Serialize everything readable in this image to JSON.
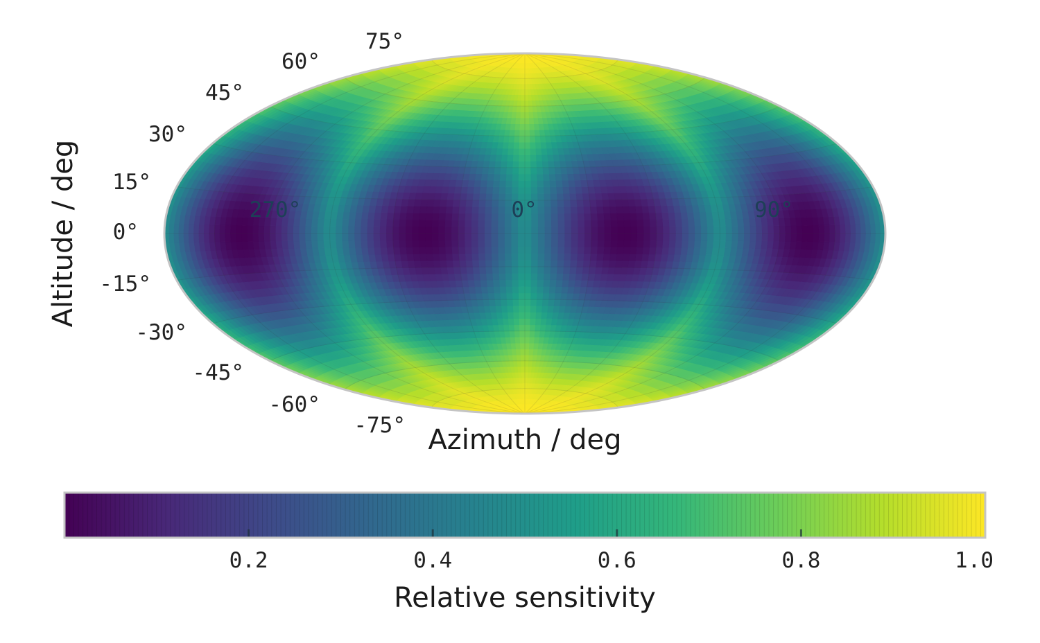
{
  "chart_data": {
    "type": "heatmap",
    "projection": "hammer",
    "title": "",
    "xlabel": "Azimuth / deg",
    "ylabel": "Altitude / deg",
    "x_tick_labels": [
      {
        "value": 270,
        "label": "270°"
      },
      {
        "value": 0,
        "label": "0°"
      },
      {
        "value": 90,
        "label": "90°"
      }
    ],
    "y_tick_labels": [
      {
        "value": 75,
        "label": "75°"
      },
      {
        "value": 60,
        "label": "60°"
      },
      {
        "value": 45,
        "label": "45°"
      },
      {
        "value": 30,
        "label": "30°"
      },
      {
        "value": 15,
        "label": "15°"
      },
      {
        "value": 0,
        "label": "0°"
      },
      {
        "value": -15,
        "label": "-15°"
      },
      {
        "value": -30,
        "label": "-30°"
      },
      {
        "value": -45,
        "label": "-45°"
      },
      {
        "value": -60,
        "label": "-60°"
      },
      {
        "value": -75,
        "label": "-75°"
      }
    ],
    "xlim_deg": [
      -180,
      180
    ],
    "ylim_deg": [
      -90,
      90
    ],
    "grid": true,
    "colormap": "viridis",
    "field": {
      "description_of_pattern": "sensitivity minima at altitude 0",
      "minima": [
        {
          "azimuth": -135,
          "altitude": 0,
          "value": 0.0
        },
        {
          "azimuth": -45,
          "altitude": 0,
          "value": 0.0
        },
        {
          "azimuth": 45,
          "altitude": 0,
          "value": 0.0
        },
        {
          "azimuth": 135,
          "altitude": 0,
          "value": 0.0
        }
      ],
      "pole_value": 1.0,
      "value_range": [
        0.0,
        1.0
      ]
    },
    "colorbar": {
      "label": "Relative sensitivity",
      "orientation": "horizontal",
      "range": [
        0.0,
        1.0
      ],
      "ticks": [
        0.2,
        0.4,
        0.6,
        0.8,
        1.0
      ],
      "tick_labels": [
        "0.2",
        "0.4",
        "0.6",
        "0.8",
        "1.0"
      ]
    }
  },
  "colors": {
    "frame": "#c4c4c4",
    "viridis_stops": [
      "#440154",
      "#482878",
      "#3e4a89",
      "#31688e",
      "#26828e",
      "#1f9e89",
      "#35b779",
      "#6ece58",
      "#b5de2b",
      "#fde725"
    ]
  }
}
